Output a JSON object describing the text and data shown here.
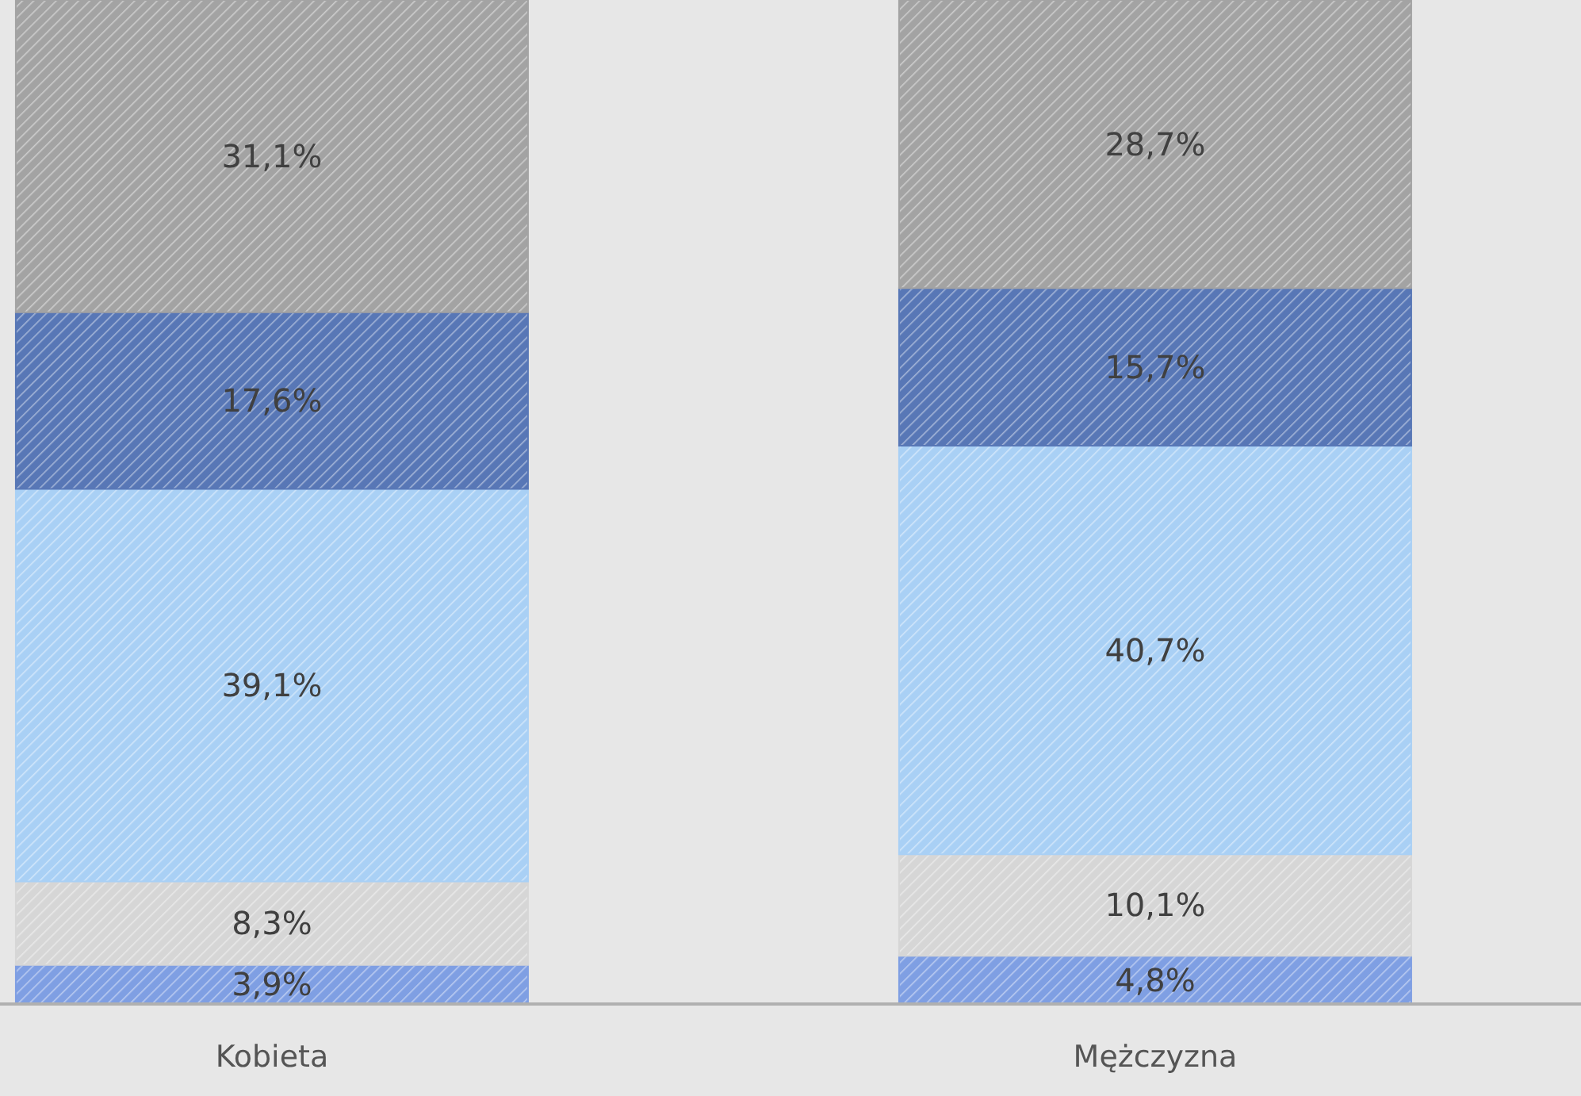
{
  "chart_data": {
    "type": "bar",
    "stacked": true,
    "categories": [
      "Kobieta",
      "Mężczyzna"
    ],
    "series": [
      {
        "color": "#7f9fe3",
        "values": [
          3.9,
          4.8
        ],
        "value_labels": [
          "3,9%",
          "4,8%"
        ]
      },
      {
        "color": "#d6d6d6",
        "values": [
          8.3,
          10.1
        ],
        "value_labels": [
          "8,3%",
          "10,1%"
        ]
      },
      {
        "color": "#a9d0f5",
        "values": [
          39.1,
          40.7
        ],
        "value_labels": [
          "39,1%",
          "40,7%"
        ]
      },
      {
        "color": "#5877b6",
        "values": [
          17.6,
          15.7
        ],
        "value_labels": [
          "17,6%",
          "15,7%"
        ]
      },
      {
        "color": "#a3a3a3",
        "values": [
          31.1,
          28.7
        ],
        "value_labels": [
          "31,1%",
          "28,7%"
        ]
      }
    ]
  }
}
